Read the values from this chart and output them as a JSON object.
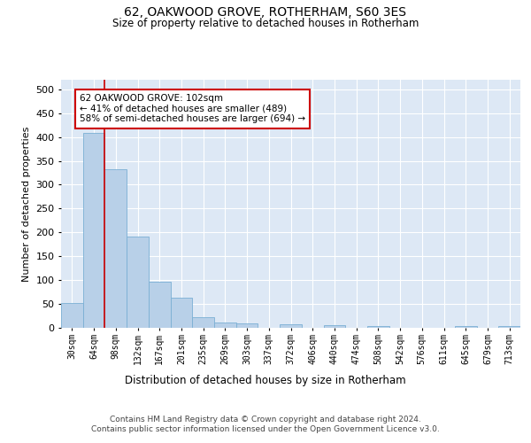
{
  "title": "62, OAKWOOD GROVE, ROTHERHAM, S60 3ES",
  "subtitle": "Size of property relative to detached houses in Rotherham",
  "xlabel": "Distribution of detached houses by size in Rotherham",
  "ylabel": "Number of detached properties",
  "categories": [
    "30sqm",
    "64sqm",
    "98sqm",
    "132sqm",
    "167sqm",
    "201sqm",
    "235sqm",
    "269sqm",
    "303sqm",
    "337sqm",
    "372sqm",
    "406sqm",
    "440sqm",
    "474sqm",
    "508sqm",
    "542sqm",
    "576sqm",
    "611sqm",
    "645sqm",
    "679sqm",
    "713sqm"
  ],
  "values": [
    52,
    408,
    332,
    192,
    97,
    63,
    23,
    12,
    10,
    0,
    7,
    0,
    6,
    0,
    4,
    0,
    0,
    0,
    4,
    0,
    4
  ],
  "bar_color": "#b8d0e8",
  "bar_edge_color": "#7aafd4",
  "bar_width": 1.0,
  "property_line_index": 1.5,
  "property_line_color": "#cc0000",
  "annotation_box_text": "62 OAKWOOD GROVE: 102sqm\n← 41% of detached houses are smaller (489)\n58% of semi-detached houses are larger (694) →",
  "annotation_box_color": "#cc0000",
  "ylim": [
    0,
    520
  ],
  "yticks": [
    0,
    50,
    100,
    150,
    200,
    250,
    300,
    350,
    400,
    450,
    500
  ],
  "background_color": "#ffffff",
  "plot_bg_color": "#dde8f5",
  "grid_color": "#ffffff",
  "footer_line1": "Contains HM Land Registry data © Crown copyright and database right 2024.",
  "footer_line2": "Contains public sector information licensed under the Open Government Licence v3.0."
}
